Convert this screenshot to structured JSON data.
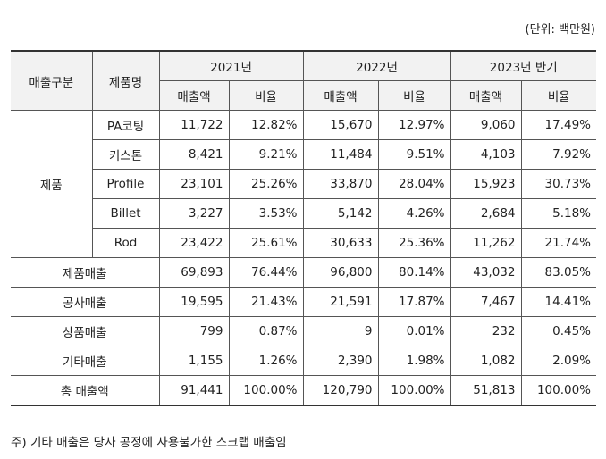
{
  "unit_label": "(단위: 백만원)",
  "header": {
    "col_category": "매출구분",
    "col_product": "제품명",
    "years": [
      "2021년",
      "2022년",
      "2023년 반기"
    ],
    "sub_sales": "매출액",
    "sub_ratio": "비율"
  },
  "product_group": "제품",
  "products": [
    {
      "name": "PA코팅",
      "cells": [
        "11,722",
        "12.82%",
        "15,670",
        "12.97%",
        "9,060",
        "17.49%"
      ]
    },
    {
      "name": "키스톤",
      "cells": [
        "8,421",
        "9.21%",
        "11,484",
        "9.51%",
        "4,103",
        "7.92%"
      ]
    },
    {
      "name": "Profile",
      "cells": [
        "23,101",
        "25.26%",
        "33,870",
        "28.04%",
        "15,923",
        "30.73%"
      ]
    },
    {
      "name": "Billet",
      "cells": [
        "3,227",
        "3.53%",
        "5,142",
        "4.26%",
        "2,684",
        "5.18%"
      ]
    },
    {
      "name": "Rod",
      "cells": [
        "23,422",
        "25.61%",
        "30,633",
        "25.36%",
        "11,262",
        "21.74%"
      ]
    }
  ],
  "summary": [
    {
      "label": "제품매출",
      "cells": [
        "69,893",
        "76.44%",
        "96,800",
        "80.14%",
        "43,032",
        "83.05%"
      ]
    },
    {
      "label": "공사매출",
      "cells": [
        "19,595",
        "21.43%",
        "21,591",
        "17.87%",
        "7,467",
        "14.41%"
      ]
    },
    {
      "label": "상품매출",
      "cells": [
        "799",
        "0.87%",
        "9",
        "0.01%",
        "232",
        "0.45%"
      ]
    },
    {
      "label": "기타매출",
      "cells": [
        "1,155",
        "1.26%",
        "2,390",
        "1.98%",
        "1,082",
        "2.09%"
      ]
    },
    {
      "label": "총 매출액",
      "cells": [
        "91,441",
        "100.00%",
        "120,790",
        "100.00%",
        "51,813",
        "100.00%"
      ]
    }
  ],
  "note": "주) 기타 매출은 당사 공정에 사용불가한 스크랩 매출임"
}
